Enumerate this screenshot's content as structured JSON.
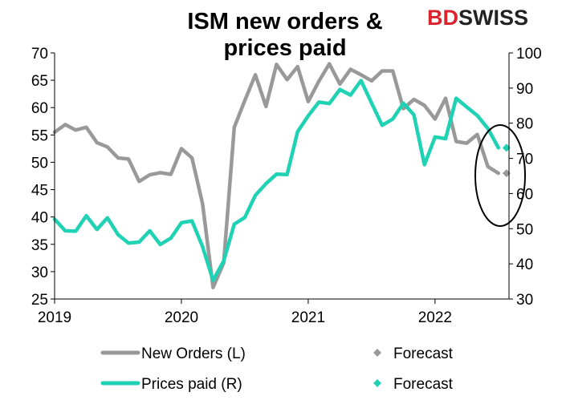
{
  "chart_data": {
    "type": "line",
    "title_lines": [
      "ISM new orders &",
      "prices paid"
    ],
    "brand": {
      "part1": "BD",
      "part2": "SWISS"
    },
    "x_labels": [
      "2019",
      "2020",
      "2021",
      "2022"
    ],
    "xlim": [
      "2019-01",
      "2022-08"
    ],
    "ylim_left": [
      25,
      70
    ],
    "yticks_left": [
      25,
      30,
      35,
      40,
      45,
      50,
      55,
      60,
      65,
      70
    ],
    "ylim_right": [
      30,
      100
    ],
    "yticks_right": [
      30,
      40,
      50,
      60,
      70,
      80,
      90,
      100
    ],
    "grid": false,
    "legend_position": "bottom",
    "series": [
      {
        "name": "New Orders (L)",
        "axis": "left",
        "color": "#999999",
        "x": [
          "2019-01",
          "2019-02",
          "2019-03",
          "2019-04",
          "2019-05",
          "2019-06",
          "2019-07",
          "2019-08",
          "2019-09",
          "2019-10",
          "2019-11",
          "2019-12",
          "2020-01",
          "2020-02",
          "2020-03",
          "2020-04",
          "2020-05",
          "2020-06",
          "2020-07",
          "2020-08",
          "2020-09",
          "2020-10",
          "2020-11",
          "2020-12",
          "2021-01",
          "2021-02",
          "2021-03",
          "2021-04",
          "2021-05",
          "2021-06",
          "2021-07",
          "2021-08",
          "2021-09",
          "2021-10",
          "2021-11",
          "2021-12",
          "2022-01",
          "2022-02",
          "2022-03",
          "2022-04",
          "2022-05",
          "2022-06",
          "2022-07"
        ],
        "values": [
          55.5,
          56.9,
          55.9,
          56.4,
          53.6,
          52.8,
          50.8,
          50.6,
          46.5,
          47.7,
          48.1,
          47.8,
          52.5,
          50.8,
          42.4,
          27.1,
          31.6,
          56.4,
          61.3,
          66.0,
          60.2,
          67.9,
          65.1,
          67.5,
          61.1,
          64.8,
          68.0,
          64.3,
          67.0,
          66.0,
          64.9,
          66.7,
          66.7,
          59.8,
          61.5,
          60.4,
          57.9,
          61.7,
          53.8,
          53.5,
          55.1,
          49.2,
          48.0
        ],
        "forecast": {
          "name": "Forecast",
          "x": "2022-07",
          "value": 48.0
        }
      },
      {
        "name": "Prices paid (R)",
        "axis": "right",
        "color": "#1fd2b4",
        "x": [
          "2019-01",
          "2019-02",
          "2019-03",
          "2019-04",
          "2019-05",
          "2019-06",
          "2019-07",
          "2019-08",
          "2019-09",
          "2019-10",
          "2019-11",
          "2019-12",
          "2020-01",
          "2020-02",
          "2020-03",
          "2020-04",
          "2020-05",
          "2020-06",
          "2020-07",
          "2020-08",
          "2020-09",
          "2020-10",
          "2020-11",
          "2020-12",
          "2021-01",
          "2021-02",
          "2021-03",
          "2021-04",
          "2021-05",
          "2021-06",
          "2021-07",
          "2021-08",
          "2021-09",
          "2021-10",
          "2021-11",
          "2021-12",
          "2022-01",
          "2022-02",
          "2022-03",
          "2022-04",
          "2022-05",
          "2022-06",
          "2022-07"
        ],
        "values": [
          52.7,
          49.4,
          49.3,
          53.7,
          49.8,
          53.1,
          48.3,
          45.9,
          46.2,
          49.4,
          45.5,
          47.3,
          51.7,
          52.2,
          44.9,
          35.3,
          40.8,
          51.3,
          53.2,
          59.5,
          62.8,
          65.5,
          65.4,
          77.6,
          82.1,
          86.0,
          85.6,
          89.6,
          88.0,
          92.1,
          85.7,
          79.4,
          81.2,
          85.7,
          82.4,
          68.2,
          76.1,
          75.6,
          87.1,
          84.6,
          82.2,
          78.5,
          73.0
        ],
        "forecast": {
          "name": "Forecast",
          "x": "2022-07",
          "value": 73.0
        }
      }
    ]
  }
}
